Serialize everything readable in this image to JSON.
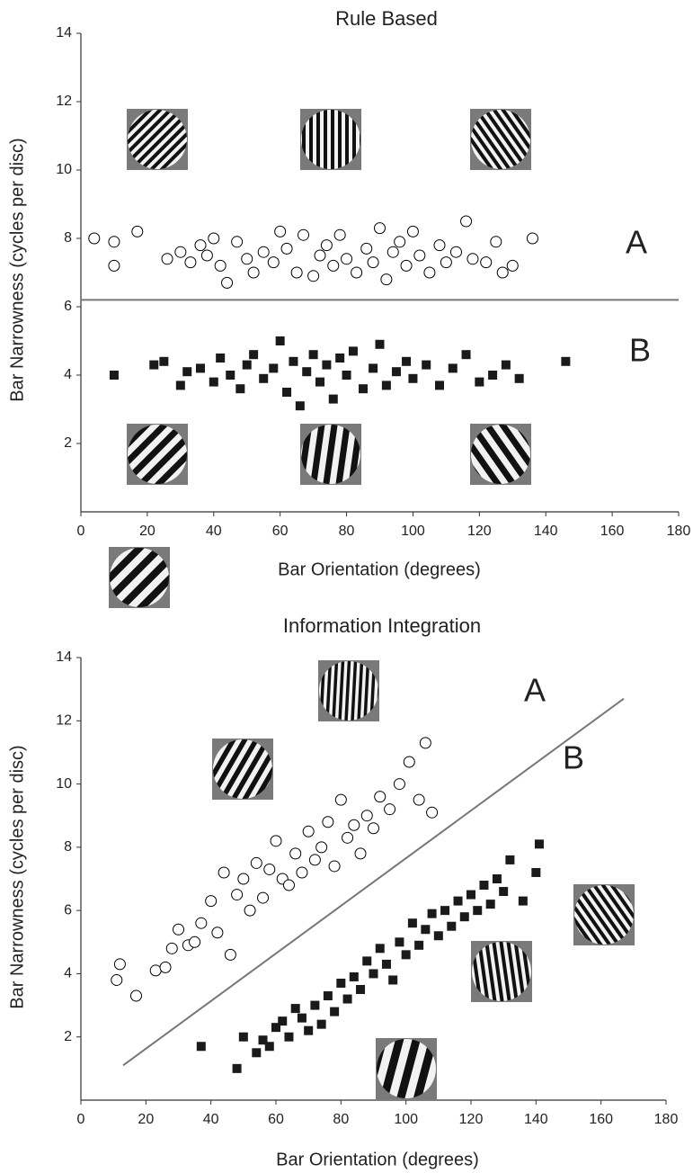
{
  "chart_data": [
    {
      "type": "scatter",
      "title": "Rule Based",
      "x_label": "Bar Orientation (degrees)",
      "y_label": "Bar Narrowness (cycles per disc)",
      "xlim": [
        0,
        180
      ],
      "ylim": [
        0,
        14
      ],
      "xticks": [
        0,
        20,
        40,
        60,
        80,
        100,
        120,
        140,
        160,
        180
      ],
      "yticks": [
        2,
        4,
        6,
        8,
        10,
        12,
        14
      ],
      "series": [
        {
          "marker": "circle",
          "color": "#000000",
          "x": [
            4,
            10,
            10,
            17,
            26,
            30,
            33,
            36,
            38,
            40,
            42,
            44,
            47,
            50,
            52,
            55,
            58,
            60,
            62,
            65,
            67,
            70,
            72,
            74,
            76,
            78,
            80,
            83,
            86,
            88,
            90,
            92,
            94,
            96,
            98,
            100,
            102,
            105,
            108,
            110,
            113,
            116,
            118,
            122,
            125,
            127,
            130,
            136
          ],
          "values": [
            8.0,
            7.9,
            7.2,
            8.2,
            7.4,
            7.6,
            7.3,
            7.8,
            7.5,
            8.0,
            7.2,
            6.7,
            7.9,
            7.4,
            7.0,
            7.6,
            7.3,
            8.2,
            7.7,
            7.0,
            8.1,
            6.9,
            7.5,
            7.8,
            7.2,
            8.1,
            7.4,
            7.0,
            7.7,
            7.3,
            8.3,
            6.8,
            7.6,
            7.9,
            7.2,
            8.2,
            7.5,
            7.0,
            7.8,
            7.3,
            7.6,
            8.5,
            7.4,
            7.3,
            7.9,
            7.0,
            7.2,
            8.0
          ]
        },
        {
          "marker": "square",
          "color": "#1a1a1a",
          "x": [
            10,
            22,
            25,
            30,
            32,
            36,
            40,
            42,
            45,
            48,
            50,
            52,
            55,
            58,
            60,
            62,
            64,
            66,
            68,
            70,
            72,
            74,
            76,
            78,
            80,
            82,
            85,
            88,
            90,
            92,
            95,
            98,
            100,
            104,
            108,
            112,
            116,
            120,
            124,
            128,
            132,
            146
          ],
          "values": [
            4.0,
            4.3,
            4.4,
            3.7,
            4.1,
            4.2,
            3.8,
            4.5,
            4.0,
            3.6,
            4.3,
            4.6,
            3.9,
            4.2,
            5.0,
            3.5,
            4.4,
            3.1,
            4.1,
            4.6,
            3.8,
            4.3,
            3.3,
            4.5,
            4.0,
            4.7,
            3.6,
            4.2,
            4.9,
            3.7,
            4.1,
            4.4,
            3.9,
            4.3,
            3.7,
            4.2,
            4.6,
            3.8,
            4.0,
            4.3,
            3.9,
            4.4
          ]
        }
      ],
      "boundary": {
        "x": [
          0,
          180
        ],
        "y": [
          6.2,
          6.2
        ],
        "color": "#777777"
      },
      "annotations": [
        "A",
        "B"
      ]
    },
    {
      "type": "scatter",
      "title": "Information Integration",
      "x_label": "Bar Orientation (degrees)",
      "y_label": "Bar Narrowness (cycles per disc)",
      "xlim": [
        0,
        180
      ],
      "ylim": [
        0,
        14
      ],
      "xticks": [
        0,
        20,
        40,
        60,
        80,
        100,
        120,
        140,
        160,
        180
      ],
      "yticks": [
        2,
        4,
        6,
        8,
        10,
        12,
        14
      ],
      "series": [
        {
          "marker": "circle",
          "color": "#000000",
          "x": [
            11,
            12,
            17,
            23,
            26,
            28,
            30,
            33,
            35,
            37,
            40,
            42,
            44,
            46,
            48,
            50,
            52,
            54,
            56,
            58,
            60,
            62,
            64,
            66,
            68,
            70,
            72,
            74,
            76,
            78,
            80,
            82,
            84,
            86,
            88,
            90,
            92,
            95,
            98,
            101,
            104,
            106,
            108
          ],
          "values": [
            3.8,
            4.3,
            3.3,
            4.1,
            4.2,
            4.8,
            5.4,
            4.9,
            5.0,
            5.6,
            6.3,
            5.3,
            7.2,
            4.6,
            6.5,
            7.0,
            6.0,
            7.5,
            6.4,
            7.3,
            8.2,
            7.0,
            6.8,
            7.8,
            7.2,
            8.5,
            7.6,
            8.0,
            8.8,
            7.4,
            9.5,
            8.3,
            8.7,
            7.8,
            9.0,
            8.6,
            9.6,
            9.2,
            10.0,
            10.7,
            9.5,
            11.3,
            9.1
          ]
        },
        {
          "marker": "square",
          "color": "#1a1a1a",
          "x": [
            37,
            48,
            50,
            54,
            56,
            58,
            60,
            62,
            64,
            66,
            68,
            70,
            72,
            74,
            76,
            78,
            80,
            82,
            84,
            86,
            88,
            90,
            92,
            94,
            96,
            98,
            100,
            102,
            104,
            106,
            108,
            110,
            112,
            114,
            116,
            118,
            120,
            122,
            124,
            126,
            128,
            130,
            132,
            136,
            140,
            141
          ],
          "values": [
            1.7,
            1.0,
            2.0,
            1.5,
            1.9,
            1.7,
            2.3,
            2.5,
            2.0,
            2.9,
            2.6,
            2.2,
            3.0,
            2.4,
            3.3,
            2.8,
            3.7,
            3.2,
            3.9,
            3.5,
            4.4,
            4.0,
            4.8,
            4.3,
            3.8,
            5.0,
            4.6,
            5.6,
            4.9,
            5.4,
            5.9,
            5.2,
            6.0,
            5.5,
            6.3,
            5.8,
            6.5,
            6.0,
            6.8,
            6.2,
            7.0,
            6.6,
            7.6,
            6.3,
            7.2,
            8.1
          ]
        }
      ],
      "boundary": {
        "x": [
          13,
          167
        ],
        "y": [
          1.1,
          12.7
        ],
        "color": "#777777"
      },
      "annotations": [
        "A",
        "B"
      ]
    }
  ]
}
